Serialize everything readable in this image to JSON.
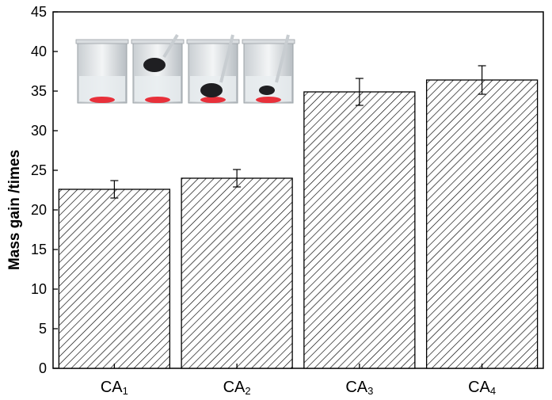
{
  "chart_data": {
    "type": "bar",
    "categories": [
      "CA1",
      "CA2",
      "CA3",
      "CA4"
    ],
    "category_labels": [
      {
        "main": "CA",
        "sub": "1"
      },
      {
        "main": "CA",
        "sub": "2"
      },
      {
        "main": "CA",
        "sub": "3"
      },
      {
        "main": "CA",
        "sub": "4"
      }
    ],
    "values": [
      22.6,
      24.0,
      34.9,
      36.4
    ],
    "errors": [
      1.1,
      1.1,
      1.7,
      1.8
    ],
    "title": "",
    "xlabel": "",
    "ylabel": "Mass gain /times",
    "ylim": [
      0,
      45
    ],
    "yticks": [
      0,
      5,
      10,
      15,
      20,
      25,
      30,
      35,
      40,
      45
    ],
    "ytick_labels": [
      "0",
      "5",
      "10",
      "15",
      "20",
      "25",
      "30",
      "35",
      "40",
      "45"
    ],
    "bar_fill": "diagonal-hatch",
    "grid": false,
    "inset": {
      "description_icons": [
        "beaker-icon",
        "beaker-with-sample-icon",
        "beaker-with-sample-icon",
        "beaker-with-sample-icon"
      ],
      "count": 4,
      "colors": {
        "liquid": "#e9edf0",
        "dye": "#e8303a",
        "sample": "#1f1f22"
      }
    }
  },
  "colors": {
    "axis": "#000000",
    "bar_fill": "#ffffff",
    "hatch": "#000000"
  }
}
